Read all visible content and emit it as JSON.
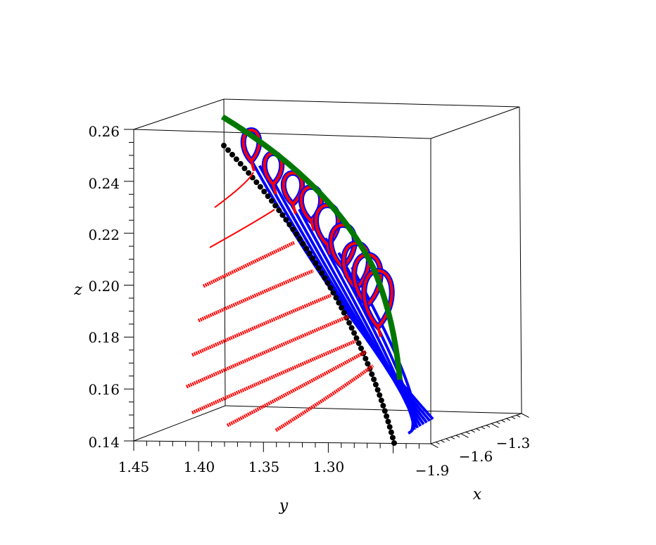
{
  "chart_data": {
    "type": "line",
    "projection": "3d",
    "axis_labels": {
      "x": "x",
      "y": "y",
      "z": "z"
    },
    "z_axis": {
      "ticks": [
        "0.26",
        "0.24",
        "0.22",
        "0.20",
        "0.18",
        "0.16",
        "0.14"
      ],
      "range": [
        0.14,
        0.26
      ]
    },
    "y_axis": {
      "ticks": [
        "1.45",
        "1.40",
        "1.35",
        "1.30"
      ],
      "range": [
        1.25,
        1.45
      ]
    },
    "x_axis": {
      "ticks": [
        "−1.9",
        "−1.6",
        "−1.3"
      ],
      "range": [
        -1.9,
        -1.3
      ]
    },
    "grid": false,
    "box": true,
    "colors": {
      "red": "#ff0000",
      "blue": "#0000ff",
      "green": "#007800",
      "black": "#000000"
    },
    "series": [
      {
        "name": "",
        "color": "#007800",
        "style": "thick-line",
        "note": "green spine curve"
      },
      {
        "name": "",
        "color": "#000000",
        "style": "dotted",
        "note": "black dotted curve"
      },
      {
        "name": "",
        "color": "#0000ff",
        "style": "lines",
        "count": 9
      },
      {
        "name": "",
        "color": "#ff0000",
        "style": "loops",
        "count": 8
      }
    ]
  }
}
